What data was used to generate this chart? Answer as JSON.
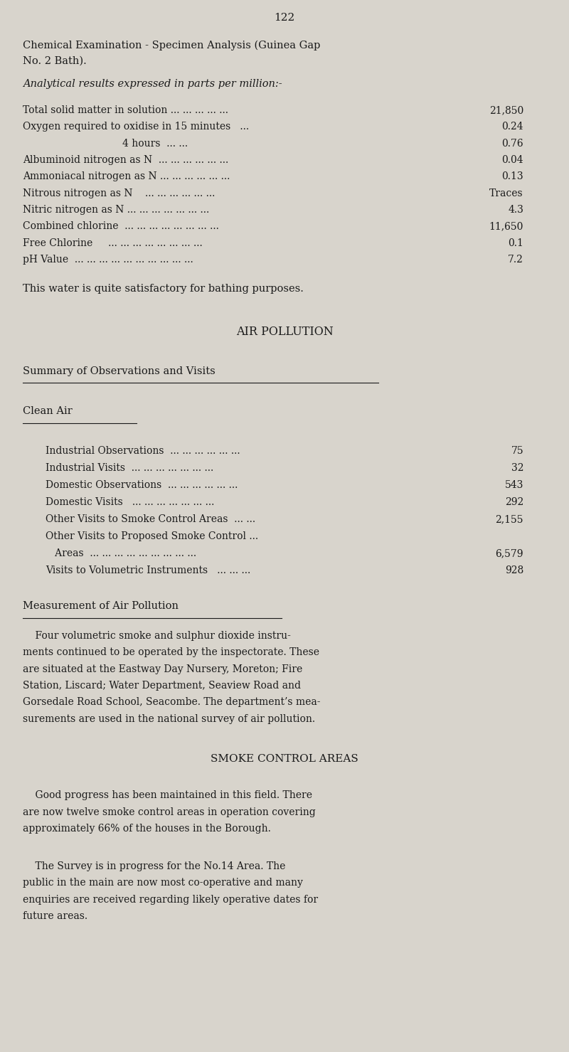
{
  "page_number": "122",
  "bg_color": "#d8d4cc",
  "text_color": "#1a1a1a",
  "page_width": 8.0,
  "page_height": 14.79,
  "analytical_subtitle": "Analytical results expressed in parts per million:-",
  "chem_rows": [
    {
      "label": "Total solid matter in solution ... ... ... ... ...",
      "value": "21,850"
    },
    {
      "label": "Oxygen required to oxidise in 15 minutes   ...",
      "value": "0.24"
    },
    {
      "label": "                                4 hours  ... ...",
      "value": "0.76"
    },
    {
      "label": "Albuminoid nitrogen as N  ... ... ... ... ... ...",
      "value": "0.04"
    },
    {
      "label": "Ammoniacal nitrogen as N ... ... ... ... ... ...",
      "value": "0.13"
    },
    {
      "label": "Nitrous nitrogen as N    ... ... ... ... ... ...",
      "value": "Traces"
    },
    {
      "label": "Nitric nitrogen as N ... ... ... ... ... ... ...",
      "value": "4.3"
    },
    {
      "label": "Combined chlorine  ... ... ... ... ... ... ... ...",
      "value": "11,650"
    },
    {
      "label": "Free Chlorine     ... ... ... ... ... ... ... ...",
      "value": "0.1"
    },
    {
      "label": "pH Value  ... ... ... ... ... ... ... ... ... ...",
      "value": "7.2"
    }
  ],
  "water_note": "This water is quite satisfactory for bathing purposes.",
  "air_pollution_title": "AIR POLLUTION",
  "summary_title": "Summary of Observations and Visits",
  "clean_air_title": "Clean Air",
  "obs_rows": [
    {
      "label": "Industrial Observations  ... ... ... ... ... ...",
      "value": "75"
    },
    {
      "label": "Industrial Visits  ... ... ... ... ... ... ...",
      "value": "32"
    },
    {
      "label": "Domestic Observations  ... ... ... ... ... ...",
      "value": "543"
    },
    {
      "label": "Domestic Visits   ... ... ... ... ... ... ...",
      "value": "292"
    },
    {
      "label": "Other Visits to Smoke Control Areas  ... ...",
      "value": "2,155"
    },
    {
      "label": "Other Visits to Proposed Smoke Control ...",
      "value": ""
    },
    {
      "label": "   Areas  ... ... ... ... ... ... ... ... ...",
      "value": "6,579"
    },
    {
      "label": "Visits to Volumetric Instruments   ... ... ...",
      "value": "928"
    }
  ],
  "measurement_title": "Measurement of Air Pollution",
  "measurement_para": "    Four volumetric smoke and sulphur dioxide instru-\nments continued to be operated by the inspectorate. These\nare situated at the Eastway Day Nursery, Moreton; Fire\nStation, Liscard; Water Department, Seaview Road and\nGorsedale Road School, Seacombe. The department’s mea-\nsurements are used in the national survey of air pollution.",
  "smoke_title": "SMOKE CONTROL AREAS",
  "smoke_para1": "    Good progress has been maintained in this field. There\nare now twelve smoke control areas in operation covering\napproximately 66% of the houses in the Borough.",
  "smoke_para2": "    The Survey is in progress for the No.14 Area. The\npublic in the main are now most co-operative and many\nenquiries are received regarding likely operative dates for\nfuture areas."
}
